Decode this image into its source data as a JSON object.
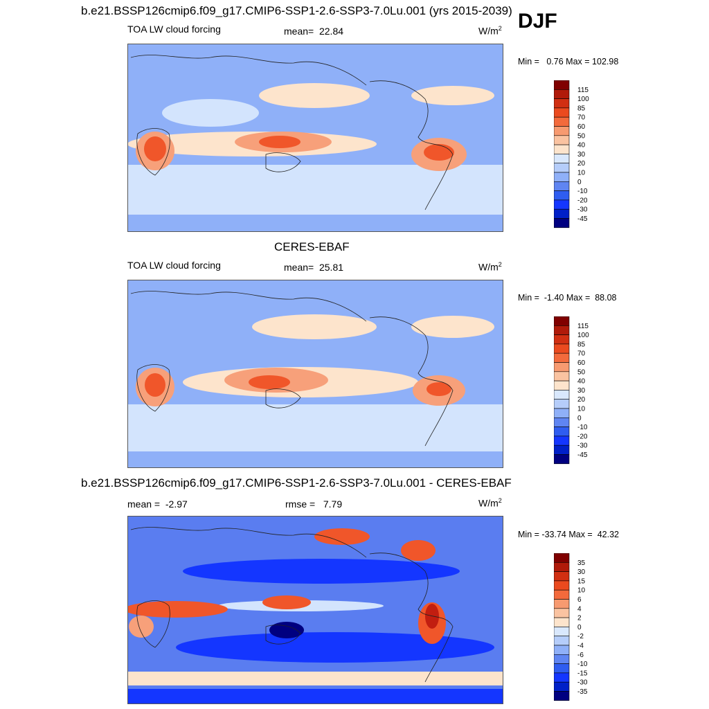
{
  "season": "DJF",
  "colors": {
    "deep_blue": "#000080",
    "blue": "#1436ff",
    "mid_blue": "#5a7df0",
    "light_blue": "#8fb0f8",
    "pale_blue": "#d3e4fd",
    "white": "#ffffff",
    "peach": "#fde4cc",
    "salmon": "#f7a07a",
    "orange_red": "#f0562a",
    "red": "#c21e10",
    "dark_red": "#800000"
  },
  "chart_data": [
    {
      "type": "heatmap",
      "title": "b.e21.BSSP126cmip6.f09_g17.CMIP6-SSP1-2.6-SSP3-7.0Lu.001 (yrs 2015-2039)",
      "variable": "TOA LW cloud forcing",
      "stat_label": "mean=",
      "stat_value": "22.84",
      "units": "W/m",
      "units_exp": "2",
      "min_label": "Min =",
      "min_value": "0.76",
      "max_label": "Max =",
      "max_value": "102.98",
      "colorbar_levels": [
        "115",
        "100",
        "85",
        "70",
        "60",
        "50",
        "40",
        "30",
        "20",
        "10",
        "0",
        "-10",
        "-20",
        "-30",
        "-45"
      ]
    },
    {
      "type": "heatmap",
      "title": "CERES-EBAF",
      "variable": "TOA LW cloud forcing",
      "stat_label": "mean=",
      "stat_value": "25.81",
      "units": "W/m",
      "units_exp": "2",
      "min_label": "Min =",
      "min_value": "-1.40",
      "max_label": "Max =",
      "max_value": "88.08",
      "colorbar_levels": [
        "115",
        "100",
        "85",
        "70",
        "60",
        "50",
        "40",
        "30",
        "20",
        "10",
        "0",
        "-10",
        "-20",
        "-30",
        "-45"
      ]
    },
    {
      "type": "heatmap",
      "title": "b.e21.BSSP126cmip6.f09_g17.CMIP6-SSP1-2.6-SSP3-7.0Lu.001 - CERES-EBAF",
      "stat_label": "mean =",
      "stat_value": "-2.97",
      "rmse_label": "rmse =",
      "rmse_value": "7.79",
      "units": "W/m",
      "units_exp": "2",
      "min_label": "Min =",
      "min_value": "-33.74",
      "max_label": "Max =",
      "max_value": "42.32",
      "colorbar_levels": [
        "35",
        "30",
        "15",
        "10",
        "6",
        "4",
        "2",
        "0",
        "-2",
        "-4",
        "-6",
        "-10",
        "-15",
        "-30",
        "-35"
      ]
    }
  ]
}
